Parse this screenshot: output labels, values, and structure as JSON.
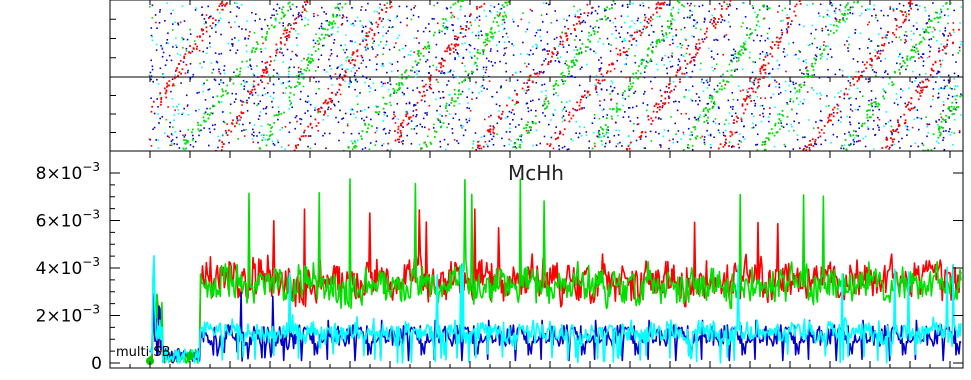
{
  "chart_data": [
    {
      "type": "scatter",
      "panel": "top raster",
      "series": [
        {
          "color": "#ff0000",
          "marker": "dot"
        },
        {
          "color": "#00dd00",
          "marker": "dot"
        },
        {
          "color": "#0000cc",
          "marker": "dot"
        },
        {
          "color": "#00ffff",
          "marker": "dot"
        }
      ],
      "description_note": "two stacked raster strips of sparse dots with diagonal stripes"
    },
    {
      "type": "line",
      "title": "McHh",
      "xlabel": "",
      "ylabel": "",
      "ylim": [
        0,
        0.008
      ],
      "y_ticks": [
        {
          "mant": "0",
          "exp": ""
        },
        {
          "mant": "2×10",
          "exp": "−3"
        },
        {
          "mant": "4×10",
          "exp": "−3"
        },
        {
          "mant": "6×10",
          "exp": "−3"
        },
        {
          "mant": "8×10",
          "exp": "−3"
        }
      ],
      "y_tick_values": [
        0,
        0.002,
        0.004,
        0.006,
        0.008
      ],
      "annotation": "multi SB",
      "grid": false,
      "series": [
        {
          "color": "#ff0000",
          "baseline": 0.0035,
          "spread": 0.0009,
          "peak": 0.0066
        },
        {
          "color": "#00e000",
          "baseline": 0.0033,
          "spread": 0.0008,
          "peak": 0.0079
        },
        {
          "color": "#0000cc",
          "baseline": 0.0011,
          "spread": 0.0006,
          "peak": 0.003
        },
        {
          "color": "#00ffff",
          "baseline": 0.0013,
          "spread": 0.0005,
          "peak": 0.0042
        }
      ]
    }
  ]
}
